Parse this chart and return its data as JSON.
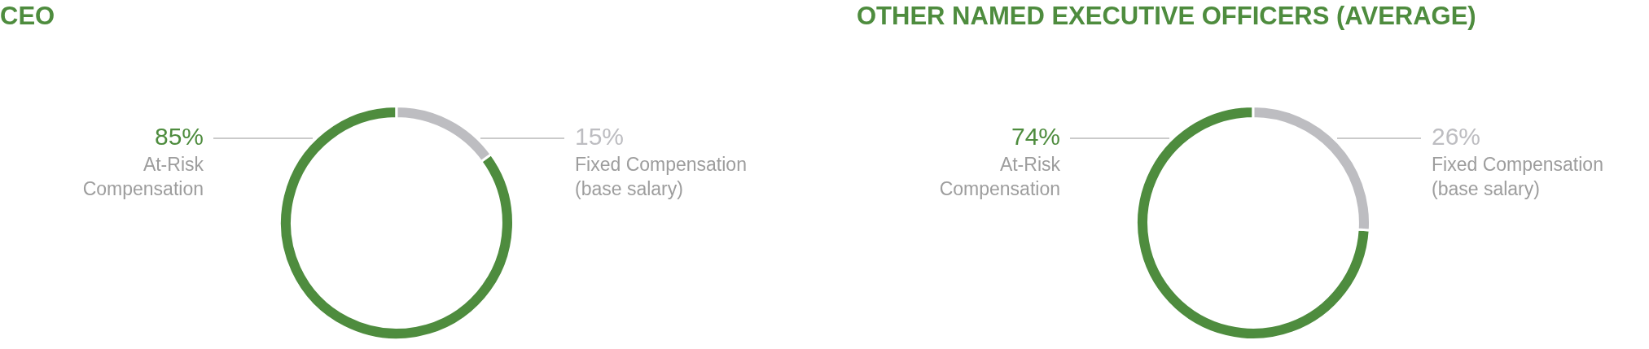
{
  "chart_data": [
    {
      "type": "donut",
      "title": "CEO",
      "categories": [
        "At-Risk Compensation",
        "Fixed Compensation (base salary)"
      ],
      "values": [
        85,
        15
      ],
      "value_labels": [
        "85%",
        "15%"
      ],
      "colors": [
        "#4e8c3e",
        "#bdbdc1"
      ]
    },
    {
      "type": "donut",
      "title": "OTHER NAMED EXECUTIVE OFFICERS (AVERAGE)",
      "categories": [
        "At-Risk Compensation",
        "Fixed Compensation (base salary)"
      ],
      "values": [
        74,
        26
      ],
      "value_labels": [
        "74%",
        "26%"
      ],
      "colors": [
        "#4e8c3e",
        "#bdbdc1"
      ]
    }
  ]
}
